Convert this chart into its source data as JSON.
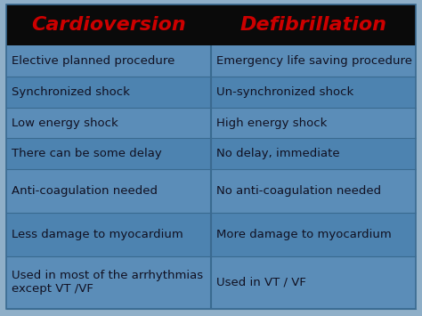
{
  "title_left": "Cardioversion",
  "title_right": "Defibrillation",
  "title_color": "#cc0000",
  "title_bg": "#0a0a0a",
  "rows": [
    [
      "Elective planned procedure",
      "Emergency life saving procedure"
    ],
    [
      "Synchronized shock",
      "Un-synchronized shock"
    ],
    [
      "Low energy shock",
      "High energy shock"
    ],
    [
      "There can be some delay",
      "No delay, immediate"
    ],
    [
      "Anti-coagulation needed",
      "No anti-coagulation needed"
    ],
    [
      "Less damage to myocardium",
      "More damage to myocardium"
    ],
    [
      "Used in most of the arrhythmias\nexcept VT /VF",
      "Used in VT / VF"
    ]
  ],
  "row_colors": [
    "#5b8db8",
    "#4d83b0",
    "#5b8db8",
    "#4d83b0",
    "#5b8db8",
    "#4d83b0",
    "#5b8db8"
  ],
  "text_color": "#111122",
  "divider_color": "#3a6a90",
  "outer_bg": "#8fafc8",
  "font_size": 9.5,
  "title_font_size": 16,
  "row_height_units": [
    1.0,
    1.0,
    1.0,
    1.0,
    1.4,
    1.4,
    1.7
  ]
}
